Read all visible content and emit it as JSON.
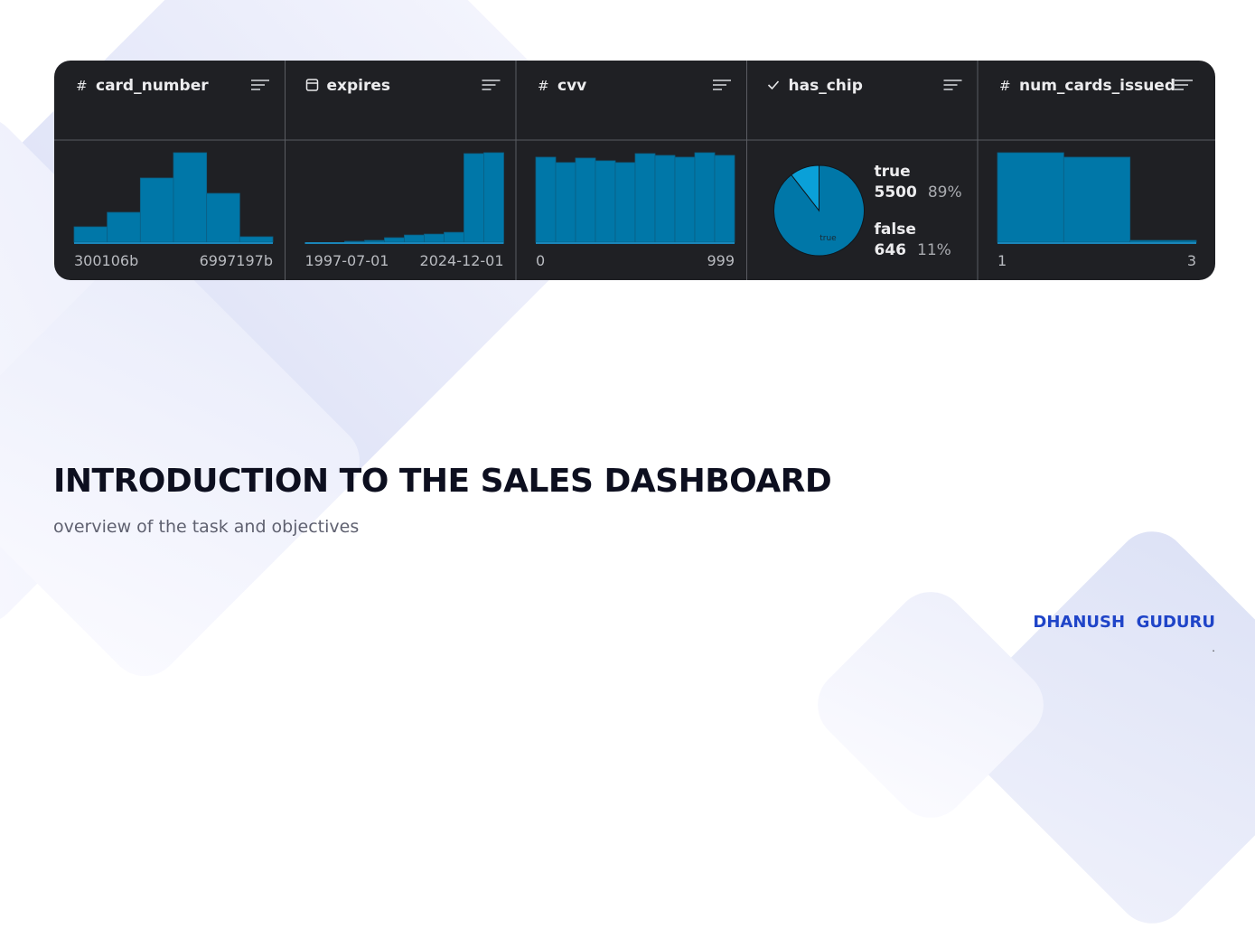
{
  "panel": {
    "columns": [
      {
        "icon": "#",
        "name": "card_number",
        "kind": "histogram",
        "values": [
          17,
          33,
          71,
          99,
          54,
          6
        ],
        "min_label": "300106b",
        "max_label": "6997197b"
      },
      {
        "name": "expires",
        "kind": "histogram",
        "values": [
          0,
          0,
          1,
          2,
          5,
          8,
          9,
          11,
          99,
          100
        ],
        "min_label": "1997-07-01",
        "max_label": "2024-12-01"
      },
      {
        "icon": "#",
        "name": "cvv",
        "kind": "histogram",
        "values": [
          95,
          89,
          94,
          91,
          89,
          99,
          97,
          95,
          100,
          97
        ],
        "min_label": "0",
        "max_label": "999"
      },
      {
        "name": "has_chip",
        "kind": "pie",
        "labels": [
          "true",
          "false"
        ],
        "values": [
          5500,
          646
        ],
        "percent_labels": [
          "89%",
          "11%"
        ]
      },
      {
        "icon": "#",
        "name": "num_cards_issued",
        "kind": "histogram",
        "values": [
          100,
          95,
          2
        ],
        "min_label": "1",
        "max_label": "3"
      }
    ]
  },
  "slide": {
    "title": "INTRODUCTION TO THE SALES DASHBOARD",
    "subtitle": "overview of the task and objectives",
    "author": "DHANUSH  GUDURU",
    "footer_mark": "."
  }
}
